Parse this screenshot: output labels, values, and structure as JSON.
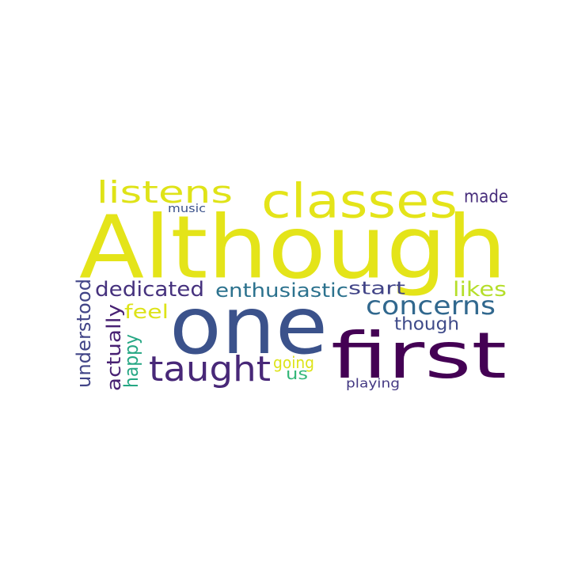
{
  "words": [
    {
      "id": "although",
      "text": "Although",
      "color": "#e4e419"
    },
    {
      "id": "one",
      "text": "one",
      "color": "#3b528b"
    },
    {
      "id": "first",
      "text": "first",
      "color": "#440154"
    },
    {
      "id": "classes",
      "text": "classes",
      "color": "#e4e419"
    },
    {
      "id": "listens",
      "text": "listens",
      "color": "#dfe318"
    },
    {
      "id": "taught",
      "text": "taught",
      "color": "#482878"
    },
    {
      "id": "concerns",
      "text": "concerns",
      "color": "#31688e"
    },
    {
      "id": "dedicated",
      "text": "dedicated",
      "color": "#46327e"
    },
    {
      "id": "enthusiastic",
      "text": "enthusiastic",
      "color": "#2c728e"
    },
    {
      "id": "start",
      "text": "start",
      "color": "#414487"
    },
    {
      "id": "likes",
      "text": "likes",
      "color": "#b5de2b"
    },
    {
      "id": "made",
      "text": "made",
      "color": "#472d7b"
    },
    {
      "id": "music",
      "text": "music",
      "color": "#3b528b"
    },
    {
      "id": "though",
      "text": "though",
      "color": "#3e4a89"
    },
    {
      "id": "feel",
      "text": "feel",
      "color": "#dde318"
    },
    {
      "id": "going",
      "text": "going",
      "color": "#dde318"
    },
    {
      "id": "us",
      "text": "us",
      "color": "#35b779"
    },
    {
      "id": "playing",
      "text": "playing",
      "color": "#443983"
    },
    {
      "id": "understood",
      "text": "understood",
      "color": "#414487"
    },
    {
      "id": "actually",
      "text": "actually",
      "color": "#482173"
    },
    {
      "id": "happy",
      "text": "happy",
      "color": "#26a784"
    }
  ]
}
